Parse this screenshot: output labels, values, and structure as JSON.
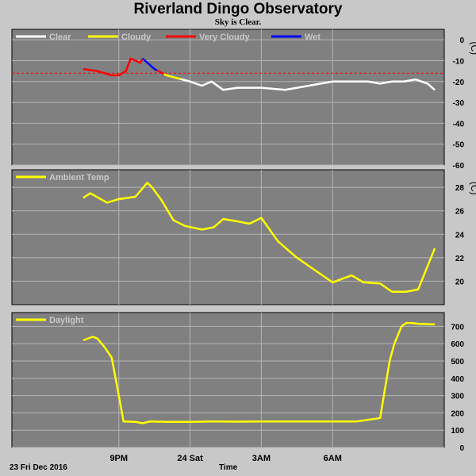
{
  "title": "Riverland Dingo Observatory",
  "subtitle": "Sky is Clear.",
  "date_label": "23 Fri Dec 2016",
  "x_axis_label": "Time",
  "colors": {
    "panel_bg": "#808080",
    "page_bg": "#c8c8c8",
    "grid": "#b4b4b4",
    "clear": "#ffffff",
    "cloudy": "#ffff00",
    "very_cloudy": "#ff0000",
    "wet": "#0000ff",
    "threshold": "#ff0000"
  },
  "chart_data": [
    {
      "type": "line",
      "name": "sky-temperature",
      "unit": "(C)",
      "ylim": [
        -60,
        5
      ],
      "yticks": [
        0,
        -10,
        -20,
        -30,
        -40,
        -50,
        -60
      ],
      "threshold": -16,
      "legend": [
        {
          "label": "Clear",
          "color": "#ffffff"
        },
        {
          "label": "Cloudy",
          "color": "#ffff00"
        },
        {
          "label": "Very Cloudy",
          "color": "#ff0000"
        },
        {
          "label": "Wet",
          "color": "#0000ff"
        }
      ],
      "x_hours": [
        7.5,
        8.1,
        8.4,
        8.7,
        9.0,
        9.3,
        9.5,
        9.9,
        10.0,
        10.5,
        11.0,
        12.0,
        12.5,
        12.9,
        13.4,
        14.0,
        15.0,
        16.0,
        17.0,
        17.5,
        18.0,
        19.0,
        19.5,
        20.0,
        20.5,
        21.0,
        21.5,
        22.0,
        22.3
      ],
      "series": [
        {
          "values": [
            -14,
            -15,
            -16,
            -17,
            -17,
            -15,
            -9,
            -11,
            -9,
            -14,
            -17,
            -20,
            -22,
            -20,
            -24,
            -23,
            -23,
            -24,
            -22,
            -21,
            -20,
            -20,
            -20,
            -21,
            -20,
            -20,
            -19,
            -21,
            -24
          ]
        }
      ],
      "segments": [
        {
          "condition": "very_cloudy",
          "from": 7.5,
          "to": 10.0
        },
        {
          "condition": "wet",
          "from": 10.0,
          "to": 10.6
        },
        {
          "condition": "very_cloudy",
          "from": 10.6,
          "to": 10.9
        },
        {
          "condition": "cloudy",
          "from": 10.9,
          "to": 11.6
        },
        {
          "condition": "clear",
          "from": 11.6,
          "to": 22.3
        }
      ]
    },
    {
      "type": "line",
      "name": "ambient-temperature",
      "unit": "(C)",
      "ylim": [
        18,
        29.5
      ],
      "yticks": [
        28,
        26,
        24,
        22,
        20
      ],
      "legend": [
        {
          "label": "Ambient Temp",
          "color": "#ffff00"
        }
      ],
      "x_hours": [
        7.5,
        7.8,
        8.5,
        9.0,
        9.7,
        10.2,
        10.4,
        10.8,
        11.3,
        11.8,
        12.5,
        13.0,
        13.4,
        14.0,
        14.5,
        15.0,
        15.7,
        16.5,
        17.0,
        18.0,
        18.8,
        19.3,
        20.0,
        20.5,
        21.1,
        21.6,
        22.3
      ],
      "series": [
        {
          "values": [
            27.1,
            27.5,
            26.7,
            27.0,
            27.2,
            28.4,
            28.0,
            26.9,
            25.2,
            24.7,
            24.4,
            24.6,
            25.3,
            25.1,
            24.9,
            25.4,
            23.4,
            22.0,
            21.3,
            19.9,
            20.5,
            19.9,
            19.8,
            19.1,
            19.1,
            19.3,
            22.8
          ]
        }
      ]
    },
    {
      "type": "line",
      "name": "daylight",
      "unit": "",
      "ylim": [
        0,
        780
      ],
      "yticks": [
        700,
        600,
        500,
        400,
        300,
        200,
        100,
        0
      ],
      "legend": [
        {
          "label": "Daylight",
          "color": "#ffff00"
        }
      ],
      "x_hours": [
        7.5,
        7.9,
        8.1,
        8.4,
        8.7,
        9.0,
        9.2,
        9.7,
        10.0,
        10.3,
        11.0,
        12.0,
        13.0,
        14.0,
        15.0,
        16.0,
        17.0,
        18.0,
        19.0,
        20.0,
        20.4,
        20.6,
        20.9,
        21.1,
        21.3,
        21.6,
        22.3
      ],
      "series": [
        {
          "values": [
            620,
            640,
            630,
            580,
            520,
            300,
            150,
            148,
            140,
            150,
            148,
            148,
            150,
            149,
            150,
            150,
            150,
            150,
            150,
            170,
            500,
            600,
            700,
            720,
            720,
            715,
            712
          ]
        }
      ]
    }
  ],
  "x_ticks": [
    {
      "label": "9PM",
      "hour": 9.0
    },
    {
      "label": "24 Sat",
      "hour": 12.0
    },
    {
      "label": "3AM",
      "hour": 15.0
    },
    {
      "label": "6AM",
      "hour": 18.0
    }
  ]
}
